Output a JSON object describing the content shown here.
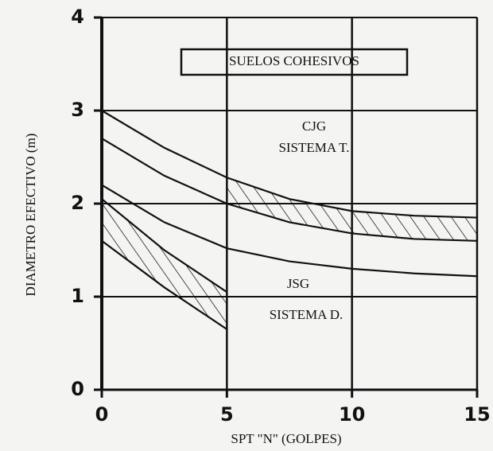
{
  "chart_data": {
    "type": "line",
    "annotations": [
      "SUELOS COHESIVOS",
      "CJG",
      "SISTEMA T.",
      "JSG",
      "SISTEMA D."
    ],
    "xlabel": "SPT \"N\" (GOLPES)",
    "ylabel": "DIAMETRO EFECTIVO (m)",
    "x": [
      0,
      2.5,
      5,
      7.5,
      10,
      12.5,
      15
    ],
    "series": [
      {
        "color": "#111111",
        "values": [
          3.0,
          2.6,
          2.28,
          2.05,
          1.92,
          1.87,
          1.85
        ]
      },
      {
        "color": "#111111",
        "values": [
          2.7,
          2.3,
          2.0,
          1.8,
          1.68,
          1.62,
          1.6
        ]
      },
      {
        "color": "#111111",
        "values": [
          2.2,
          1.8,
          1.52,
          1.38,
          1.3,
          1.25,
          1.22
        ]
      },
      {
        "color": "#111111",
        "values": [
          2.05,
          1.5,
          1.05,
          null,
          null,
          null,
          null
        ]
      },
      {
        "color": "#111111",
        "values": [
          1.6,
          1.1,
          0.65,
          null,
          null,
          null,
          null
        ]
      }
    ],
    "xlim": [
      0,
      15
    ],
    "xticks": [
      0,
      5,
      10,
      15
    ],
    "ylim": [
      0,
      4
    ],
    "yticks": [
      0,
      1,
      2,
      3,
      4
    ],
    "grid": true
  }
}
